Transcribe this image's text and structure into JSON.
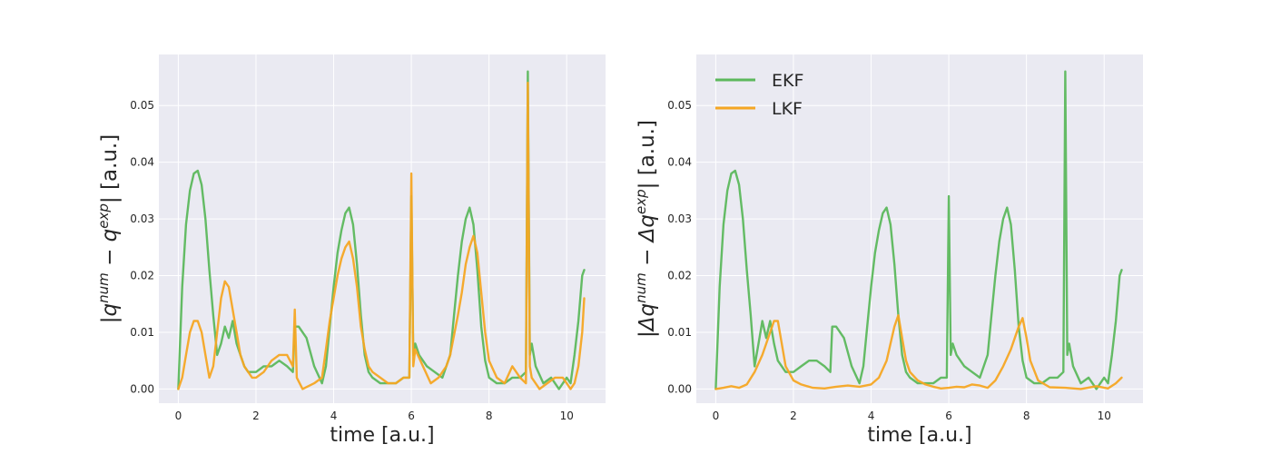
{
  "colors": {
    "ekf": "#5cb85c",
    "lkf": "#f5a623",
    "axes_bg": "#eaeaf2",
    "grid": "#ffffff",
    "text": "#262626"
  },
  "chart_data": [
    {
      "type": "line",
      "xlabel": "time [a.u.]",
      "ylabel_parts": {
        "open": "|",
        "q1": "q",
        "sup1": "num",
        "minus": " − ",
        "q2": "q",
        "sup2": "exp",
        "close": "| [a.u.]"
      },
      "xlim": [
        -0.5,
        11.0
      ],
      "ylim": [
        -0.0025,
        0.059
      ],
      "xticks": [
        0,
        2,
        4,
        6,
        8,
        10
      ],
      "xtick_labels": [
        "0",
        "2",
        "4",
        "6",
        "8",
        "10"
      ],
      "yticks": [
        0.0,
        0.01,
        0.02,
        0.03,
        0.04,
        0.05
      ],
      "ytick_labels": [
        "0.00",
        "0.01",
        "0.02",
        "0.03",
        "0.04",
        "0.05"
      ],
      "grid": true,
      "legend": false,
      "series": [
        {
          "name": "EKF",
          "color_key": "ekf",
          "x": [
            0,
            0.1,
            0.2,
            0.3,
            0.4,
            0.5,
            0.6,
            0.7,
            0.8,
            0.9,
            1.0,
            1.1,
            1.2,
            1.3,
            1.4,
            1.5,
            1.6,
            1.7,
            1.8,
            1.9,
            2.0,
            2.2,
            2.4,
            2.6,
            2.8,
            2.95,
            3.0,
            3.1,
            3.3,
            3.5,
            3.7,
            3.8,
            3.9,
            4.0,
            4.1,
            4.2,
            4.3,
            4.4,
            4.5,
            4.6,
            4.7,
            4.8,
            4.9,
            5.0,
            5.2,
            5.4,
            5.6,
            5.8,
            5.95,
            6.0,
            6.05,
            6.1,
            6.2,
            6.4,
            6.6,
            6.8,
            7.0,
            7.1,
            7.2,
            7.3,
            7.4,
            7.5,
            7.6,
            7.7,
            7.8,
            7.9,
            8.0,
            8.2,
            8.4,
            8.6,
            8.8,
            8.95,
            9.0,
            9.05,
            9.1,
            9.2,
            9.4,
            9.6,
            9.8,
            10.0,
            10.1,
            10.2,
            10.3,
            10.4,
            10.45
          ],
          "y": [
            0.0,
            0.018,
            0.029,
            0.035,
            0.038,
            0.0385,
            0.036,
            0.03,
            0.021,
            0.013,
            0.006,
            0.008,
            0.011,
            0.009,
            0.012,
            0.008,
            0.006,
            0.004,
            0.003,
            0.003,
            0.003,
            0.004,
            0.004,
            0.005,
            0.004,
            0.003,
            0.011,
            0.011,
            0.009,
            0.004,
            0.001,
            0.004,
            0.011,
            0.018,
            0.024,
            0.028,
            0.031,
            0.032,
            0.029,
            0.022,
            0.013,
            0.006,
            0.003,
            0.002,
            0.001,
            0.001,
            0.001,
            0.002,
            0.002,
            0.034,
            0.006,
            0.008,
            0.006,
            0.004,
            0.003,
            0.002,
            0.006,
            0.013,
            0.02,
            0.026,
            0.03,
            0.032,
            0.029,
            0.021,
            0.011,
            0.005,
            0.002,
            0.001,
            0.001,
            0.002,
            0.002,
            0.003,
            0.056,
            0.006,
            0.008,
            0.004,
            0.001,
            0.002,
            0.0,
            0.002,
            0.001,
            0.006,
            0.012,
            0.02,
            0.021
          ]
        },
        {
          "name": "LKF",
          "color_key": "lkf",
          "x": [
            0,
            0.1,
            0.2,
            0.3,
            0.4,
            0.5,
            0.6,
            0.7,
            0.8,
            0.9,
            1.0,
            1.1,
            1.2,
            1.3,
            1.4,
            1.5,
            1.6,
            1.7,
            1.8,
            1.9,
            2.0,
            2.2,
            2.4,
            2.6,
            2.8,
            2.95,
            3.0,
            3.05,
            3.2,
            3.5,
            3.7,
            3.8,
            3.9,
            4.0,
            4.1,
            4.2,
            4.3,
            4.4,
            4.5,
            4.6,
            4.7,
            4.8,
            4.9,
            5.0,
            5.2,
            5.4,
            5.6,
            5.8,
            5.95,
            6.0,
            6.05,
            6.1,
            6.3,
            6.5,
            6.7,
            6.9,
            7.0,
            7.2,
            7.3,
            7.4,
            7.5,
            7.6,
            7.7,
            7.8,
            7.9,
            8.0,
            8.2,
            8.4,
            8.6,
            8.8,
            8.95,
            9.0,
            9.05,
            9.1,
            9.3,
            9.5,
            9.7,
            9.9,
            10.0,
            10.1,
            10.2,
            10.3,
            10.4,
            10.45
          ],
          "y": [
            0.0,
            0.002,
            0.006,
            0.01,
            0.012,
            0.012,
            0.01,
            0.006,
            0.002,
            0.004,
            0.01,
            0.016,
            0.019,
            0.018,
            0.014,
            0.01,
            0.006,
            0.004,
            0.003,
            0.002,
            0.002,
            0.003,
            0.005,
            0.006,
            0.006,
            0.004,
            0.014,
            0.002,
            0.0,
            0.001,
            0.002,
            0.007,
            0.012,
            0.016,
            0.02,
            0.023,
            0.025,
            0.026,
            0.023,
            0.018,
            0.011,
            0.007,
            0.004,
            0.003,
            0.002,
            0.001,
            0.001,
            0.002,
            0.002,
            0.038,
            0.004,
            0.007,
            0.004,
            0.001,
            0.002,
            0.004,
            0.006,
            0.013,
            0.017,
            0.022,
            0.025,
            0.027,
            0.024,
            0.017,
            0.01,
            0.005,
            0.002,
            0.001,
            0.004,
            0.002,
            0.001,
            0.054,
            0.004,
            0.002,
            0.0,
            0.001,
            0.002,
            0.002,
            0.001,
            0.0,
            0.001,
            0.004,
            0.01,
            0.016
          ]
        }
      ]
    },
    {
      "type": "line",
      "xlabel": "time [a.u.]",
      "ylabel_parts": {
        "open": "|",
        "q1": "Δq",
        "sup1": "num",
        "minus": " − ",
        "q2": "Δq",
        "sup2": "exp",
        "close": "| [a.u.]"
      },
      "xlim": [
        -0.5,
        11.0
      ],
      "ylim": [
        -0.0025,
        0.059
      ],
      "xticks": [
        0,
        2,
        4,
        6,
        8,
        10
      ],
      "xtick_labels": [
        "0",
        "2",
        "4",
        "6",
        "8",
        "10"
      ],
      "yticks": [
        0.0,
        0.01,
        0.02,
        0.03,
        0.04,
        0.05
      ],
      "ytick_labels": [
        "0.00",
        "0.01",
        "0.02",
        "0.03",
        "0.04",
        "0.05"
      ],
      "grid": true,
      "legend": true,
      "legend_position": "top-left",
      "series": [
        {
          "name": "EKF",
          "color_key": "ekf",
          "x": [
            0,
            0.1,
            0.2,
            0.3,
            0.4,
            0.5,
            0.6,
            0.7,
            0.8,
            0.9,
            1.0,
            1.1,
            1.2,
            1.3,
            1.4,
            1.5,
            1.6,
            1.7,
            1.8,
            1.9,
            2.0,
            2.2,
            2.4,
            2.6,
            2.8,
            2.95,
            3.0,
            3.1,
            3.3,
            3.5,
            3.7,
            3.8,
            3.9,
            4.0,
            4.1,
            4.2,
            4.3,
            4.4,
            4.5,
            4.6,
            4.7,
            4.8,
            4.9,
            5.0,
            5.2,
            5.4,
            5.6,
            5.8,
            5.95,
            6.0,
            6.05,
            6.1,
            6.2,
            6.4,
            6.6,
            6.8,
            7.0,
            7.1,
            7.2,
            7.3,
            7.4,
            7.5,
            7.6,
            7.7,
            7.8,
            7.9,
            8.0,
            8.2,
            8.4,
            8.6,
            8.8,
            8.95,
            9.0,
            9.05,
            9.1,
            9.2,
            9.4,
            9.6,
            9.8,
            10.0,
            10.1,
            10.2,
            10.3,
            10.4,
            10.45
          ],
          "y": [
            0.0,
            0.018,
            0.029,
            0.035,
            0.038,
            0.0385,
            0.036,
            0.03,
            0.021,
            0.013,
            0.004,
            0.008,
            0.012,
            0.009,
            0.012,
            0.008,
            0.005,
            0.004,
            0.003,
            0.003,
            0.003,
            0.004,
            0.005,
            0.005,
            0.004,
            0.003,
            0.011,
            0.011,
            0.009,
            0.004,
            0.001,
            0.004,
            0.011,
            0.018,
            0.024,
            0.028,
            0.031,
            0.032,
            0.029,
            0.022,
            0.013,
            0.006,
            0.003,
            0.002,
            0.001,
            0.001,
            0.001,
            0.002,
            0.002,
            0.034,
            0.006,
            0.008,
            0.006,
            0.004,
            0.003,
            0.002,
            0.006,
            0.013,
            0.02,
            0.026,
            0.03,
            0.032,
            0.029,
            0.021,
            0.011,
            0.005,
            0.002,
            0.001,
            0.001,
            0.002,
            0.002,
            0.003,
            0.056,
            0.006,
            0.008,
            0.004,
            0.001,
            0.002,
            0.0,
            0.002,
            0.001,
            0.006,
            0.012,
            0.02,
            0.021
          ]
        },
        {
          "name": "LKF",
          "color_key": "lkf",
          "x": [
            0,
            0.2,
            0.4,
            0.6,
            0.8,
            1.0,
            1.2,
            1.4,
            1.5,
            1.6,
            1.7,
            1.8,
            2.0,
            2.2,
            2.5,
            2.8,
            3.1,
            3.4,
            3.7,
            4.0,
            4.2,
            4.4,
            4.5,
            4.6,
            4.7,
            4.8,
            4.9,
            5.0,
            5.2,
            5.4,
            5.6,
            5.8,
            6.0,
            6.2,
            6.4,
            6.6,
            6.8,
            7.0,
            7.2,
            7.4,
            7.6,
            7.7,
            7.8,
            7.9,
            8.0,
            8.1,
            8.3,
            8.6,
            9.0,
            9.4,
            9.8,
            10.1,
            10.3,
            10.45
          ],
          "y": [
            0.0,
            0.0002,
            0.0005,
            0.0002,
            0.0008,
            0.003,
            0.006,
            0.01,
            0.012,
            0.012,
            0.008,
            0.004,
            0.0015,
            0.0008,
            0.0002,
            0.0001,
            0.0004,
            0.0006,
            0.0004,
            0.0008,
            0.002,
            0.005,
            0.008,
            0.011,
            0.013,
            0.009,
            0.005,
            0.003,
            0.0015,
            0.0008,
            0.0004,
            0.0001,
            0.0002,
            0.0004,
            0.0003,
            0.0008,
            0.0006,
            0.0002,
            0.0015,
            0.004,
            0.007,
            0.009,
            0.011,
            0.0125,
            0.009,
            0.005,
            0.0015,
            0.0003,
            0.0002,
            0.0,
            0.0005,
            0.0001,
            0.001,
            0.002
          ]
        }
      ]
    }
  ]
}
